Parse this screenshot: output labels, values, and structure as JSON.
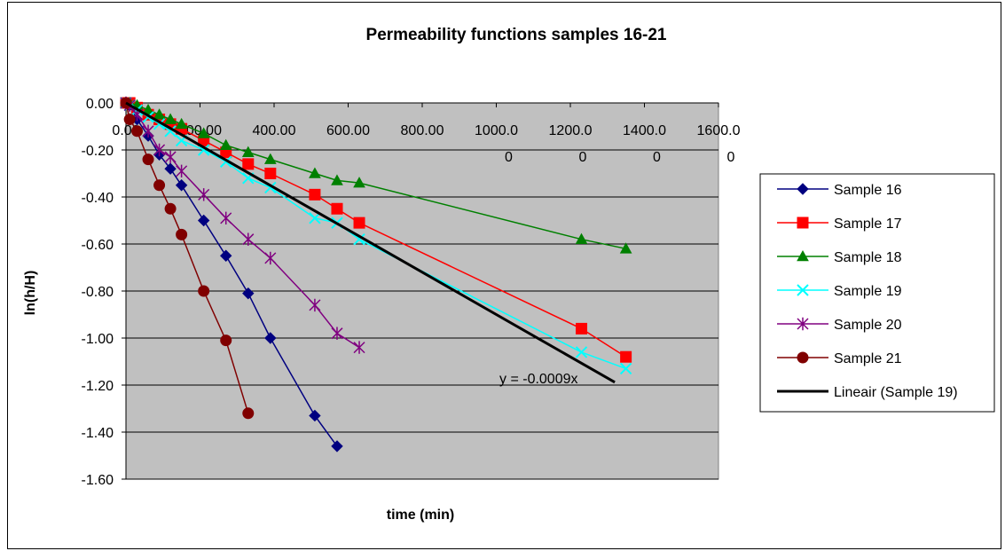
{
  "chart_data": {
    "type": "line",
    "title": "Permeability functions samples 16-21",
    "xlabel": "time (min)",
    "ylabel": "ln(h/H)",
    "xlim": [
      0,
      1600
    ],
    "ylim": [
      -1.6,
      0
    ],
    "x_ticks": [
      {
        "value": 0,
        "line1": "0.00",
        "line2": ""
      },
      {
        "value": 200,
        "line1": "200.00",
        "line2": ""
      },
      {
        "value": 400,
        "line1": "400.00",
        "line2": ""
      },
      {
        "value": 600,
        "line1": "600.00",
        "line2": ""
      },
      {
        "value": 800,
        "line1": "800.00",
        "line2": ""
      },
      {
        "value": 1000,
        "line1": "1000.0",
        "line2": "0"
      },
      {
        "value": 1200,
        "line1": "1200.0",
        "line2": "0"
      },
      {
        "value": 1400,
        "line1": "1400.0",
        "line2": "0"
      },
      {
        "value": 1600,
        "line1": "1600.0",
        "line2": "0"
      }
    ],
    "y_ticks": [
      "0.00",
      "-0.20",
      "-0.40",
      "-0.60",
      "-0.80",
      "-1.00",
      "-1.20",
      "-1.40",
      "-1.60"
    ],
    "y_tick_values": [
      0,
      -0.2,
      -0.4,
      -0.6,
      -0.8,
      -1.0,
      -1.2,
      -1.4,
      -1.6
    ],
    "grid": true,
    "legend_position": "right",
    "plot_background": "#c0c0c0",
    "series": [
      {
        "name": "Sample 16",
        "color": "#000080",
        "marker": "diamond",
        "x": [
          0,
          10,
          30,
          60,
          90,
          120,
          150,
          210,
          270,
          330,
          390,
          510,
          570
        ],
        "y": [
          0,
          -0.01,
          -0.07,
          -0.14,
          -0.22,
          -0.28,
          -0.35,
          -0.5,
          -0.65,
          -0.81,
          -1.0,
          -1.33,
          -1.46
        ]
      },
      {
        "name": "Sample 17",
        "color": "#ff0000",
        "marker": "square",
        "x": [
          0,
          10,
          30,
          60,
          90,
          120,
          150,
          210,
          270,
          330,
          390,
          510,
          570,
          630,
          1230,
          1350
        ],
        "y": [
          0,
          0,
          -0.02,
          -0.05,
          -0.07,
          -0.09,
          -0.11,
          -0.16,
          -0.21,
          -0.26,
          -0.3,
          -0.39,
          -0.45,
          -0.51,
          -0.96,
          -1.08
        ]
      },
      {
        "name": "Sample 18",
        "color": "#008000",
        "marker": "triangle",
        "x": [
          0,
          10,
          30,
          60,
          90,
          120,
          150,
          210,
          270,
          330,
          390,
          510,
          570,
          630,
          1230,
          1350
        ],
        "y": [
          0,
          0,
          -0.01,
          -0.03,
          -0.05,
          -0.07,
          -0.09,
          -0.13,
          -0.18,
          -0.21,
          -0.24,
          -0.3,
          -0.33,
          -0.34,
          -0.58,
          -0.62
        ]
      },
      {
        "name": "Sample 19",
        "color": "#00ffff",
        "marker": "x",
        "x": [
          0,
          10,
          30,
          60,
          90,
          120,
          150,
          210,
          270,
          330,
          390,
          510,
          570,
          630,
          1230,
          1350
        ],
        "y": [
          0,
          -0.01,
          -0.03,
          -0.06,
          -0.09,
          -0.12,
          -0.16,
          -0.2,
          -0.25,
          -0.32,
          -0.36,
          -0.49,
          -0.51,
          -0.58,
          -1.06,
          -1.13
        ]
      },
      {
        "name": "Sample 20",
        "color": "#800080",
        "marker": "star",
        "x": [
          0,
          10,
          30,
          60,
          90,
          120,
          150,
          210,
          270,
          330,
          390,
          510,
          570,
          630
        ],
        "y": [
          0,
          -0.01,
          -0.05,
          -0.12,
          -0.2,
          -0.23,
          -0.29,
          -0.39,
          -0.49,
          -0.58,
          -0.66,
          -0.86,
          -0.98,
          -1.04
        ]
      },
      {
        "name": "Sample 21",
        "color": "#800000",
        "marker": "circle",
        "x": [
          0,
          10,
          30,
          60,
          90,
          120,
          150,
          210,
          270,
          330
        ],
        "y": [
          0,
          -0.07,
          -0.12,
          -0.24,
          -0.35,
          -0.45,
          -0.56,
          -0.8,
          -1.01,
          -1.32
        ]
      }
    ],
    "trendline": {
      "name": "Lineair (Sample 19)",
      "color": "#000000",
      "slope": -0.0009,
      "x": [
        0,
        1320
      ],
      "equation": "y = -0.0009x"
    }
  }
}
